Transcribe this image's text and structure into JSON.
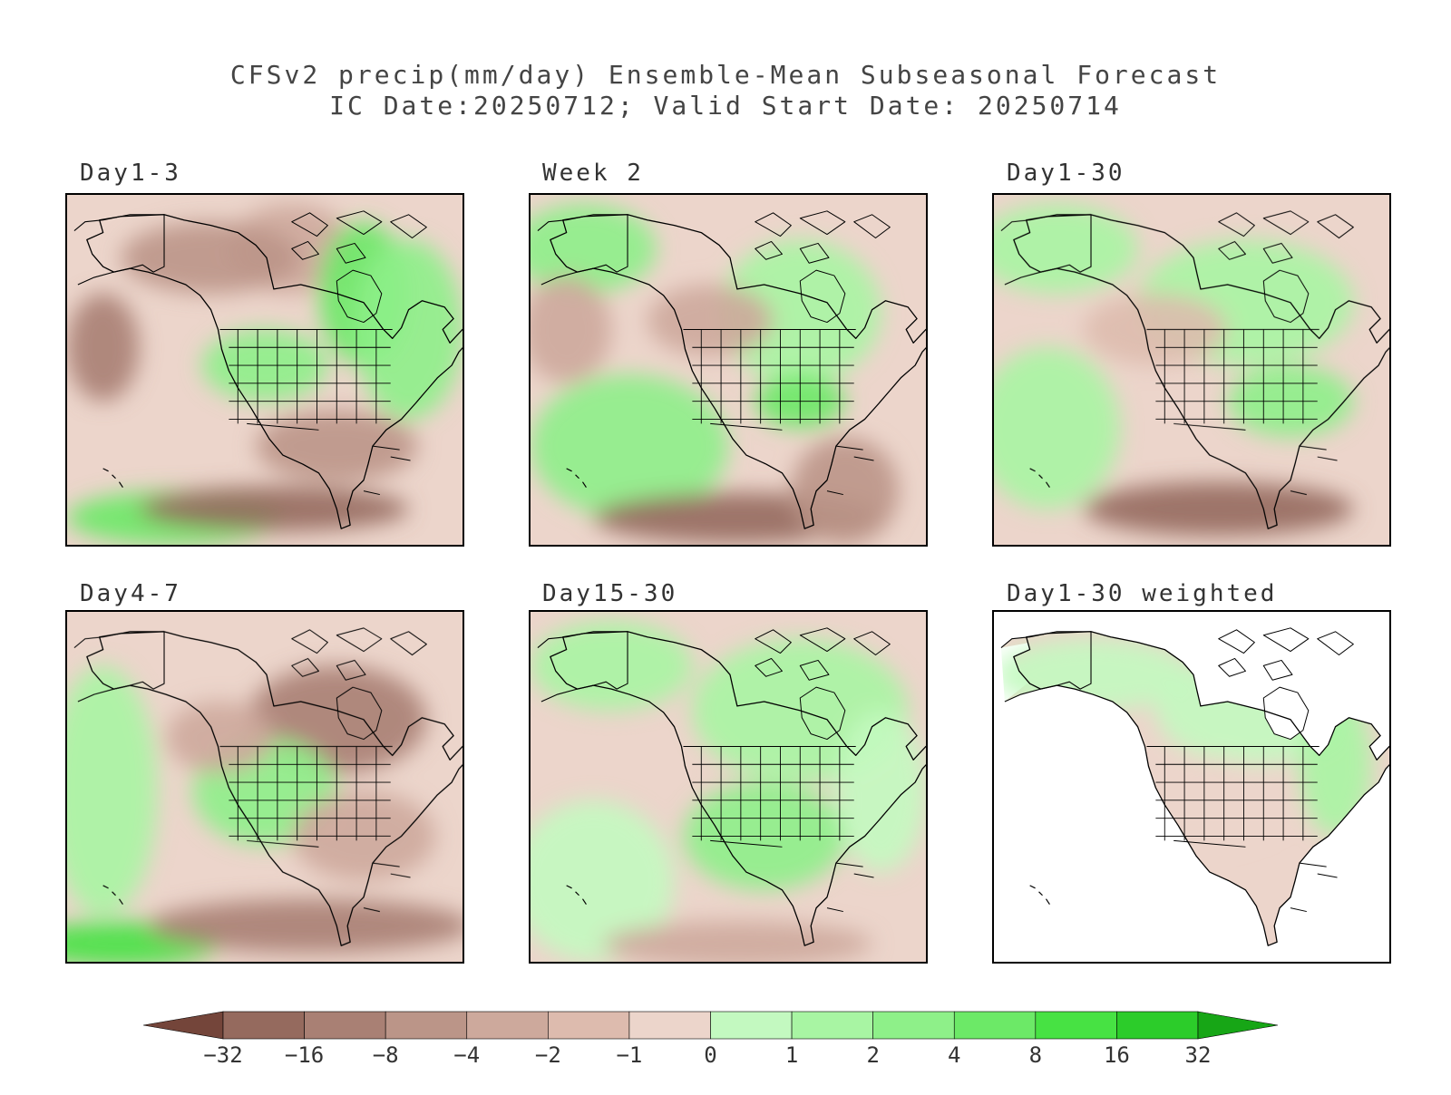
{
  "title": {
    "line1": "CFSv2 precip(mm/day) Ensemble-Mean Subseasonal Forecast",
    "line2": "IC Date:20250712; Valid Start Date: 20250714"
  },
  "panels": [
    {
      "label": "Day1-3",
      "id": "day1-3"
    },
    {
      "label": "Week 2",
      "id": "week2"
    },
    {
      "label": "Day1-30",
      "id": "day1-30"
    },
    {
      "label": "Day4-7",
      "id": "day4-7"
    },
    {
      "label": "Day15-30",
      "id": "day15-30"
    },
    {
      "label": "Day1-30 weighted",
      "id": "day1-30-weighted"
    }
  ],
  "colorbar": {
    "ticks": [
      "-32",
      "-16",
      "-8",
      "-4",
      "-2",
      "-1",
      "0",
      "1",
      "2",
      "4",
      "8",
      "16",
      "32"
    ],
    "colors": [
      "#74453a",
      "#956a5e",
      "#a98074",
      "#bb9588",
      "#cda99c",
      "#ddbbae",
      "#ecd5cb",
      "#c3f9c0",
      "#a8f5a3",
      "#8ef089",
      "#6ce967",
      "#47e243",
      "#2ccc2a",
      "#17a616"
    ]
  }
}
